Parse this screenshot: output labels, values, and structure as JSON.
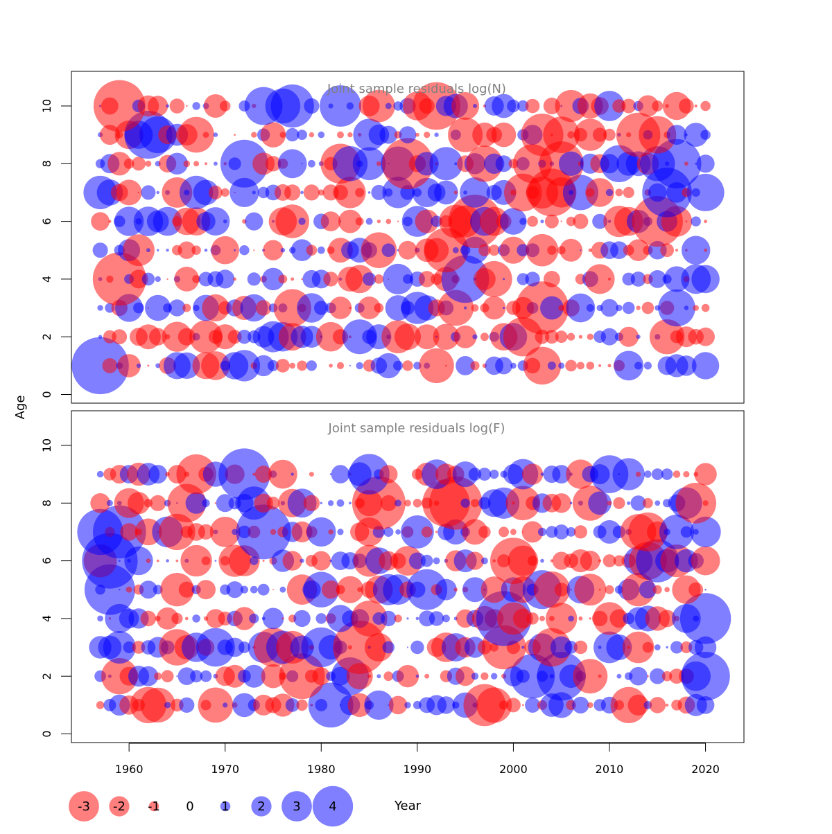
{
  "chart_data": [
    {
      "type": "scatter",
      "subtype": "bubble",
      "title": "Joint sample residuals log(N)",
      "xlabel": "Year",
      "ylabel": "Age",
      "xlim": [
        1954,
        2024
      ],
      "ylim": [
        -0.3,
        11.2
      ],
      "x_ticks": [
        1960,
        1970,
        1980,
        1990,
        2000,
        2010,
        2020
      ],
      "y_ticks": [
        0,
        2,
        4,
        6,
        8,
        10
      ],
      "ages": [
        1,
        2,
        3,
        4,
        5,
        6,
        7,
        8,
        9,
        10
      ],
      "year_range": [
        1957,
        2020
      ],
      "value_range": [
        -3.5,
        4.5
      ],
      "colors": {
        "positive": "#0000ff",
        "negative": "#ff0000",
        "alpha": 0.5
      }
    },
    {
      "type": "scatter",
      "subtype": "bubble",
      "title": "Joint sample residuals log(F)",
      "xlabel": "Year",
      "ylabel": "Age",
      "xlim": [
        1954,
        2024
      ],
      "ylim": [
        -0.3,
        11.2
      ],
      "x_ticks": [
        1960,
        1970,
        1980,
        1990,
        2000,
        2010,
        2020
      ],
      "y_ticks": [
        0,
        2,
        4,
        6,
        8,
        10
      ],
      "ages": [
        1,
        2,
        3,
        4,
        5,
        6,
        7,
        8,
        9
      ],
      "year_range": [
        1957,
        2020
      ],
      "value_range": [
        -3.5,
        4.5
      ],
      "colors": {
        "positive": "#0000ff",
        "negative": "#ff0000",
        "alpha": 0.5
      }
    }
  ],
  "legend": {
    "items": [
      "-3",
      "-2",
      "-1",
      "0",
      "1",
      "2",
      "3",
      "4"
    ],
    "values": [
      -3,
      -2,
      -1,
      0,
      1,
      2,
      3,
      4
    ]
  },
  "shared_axis": {
    "xlabel": "Year",
    "ylabel": "Age"
  }
}
